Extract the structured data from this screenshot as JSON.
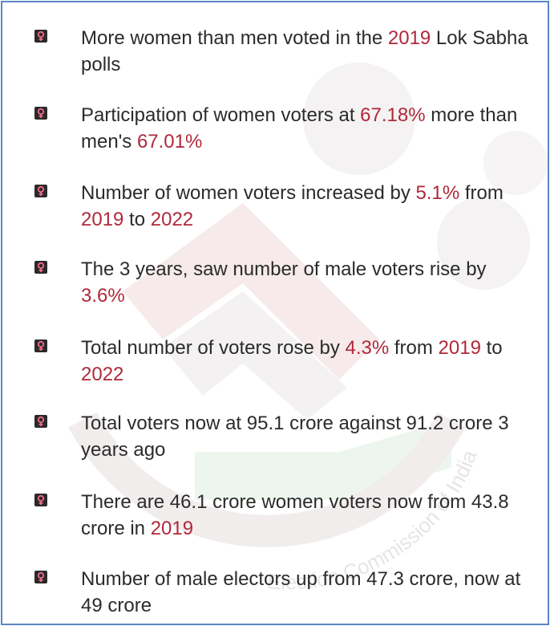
{
  "watermark": {
    "arc_text": "Election Commission of India"
  },
  "colors": {
    "text": "#2b2b2b",
    "highlight": "#b0283a",
    "bullet_bg": "#2a2a2a",
    "bullet_symbol": "#f06a8a",
    "border": "#5b86c6"
  },
  "bullet_icon": "female-symbol-icon",
  "facts": [
    {
      "segments": [
        {
          "t": "More women than men voted in the "
        },
        {
          "t": "2019",
          "hl": true
        },
        {
          "t": " Lok Sabha polls"
        }
      ]
    },
    {
      "segments": [
        {
          "t": "Participation of women voters at "
        },
        {
          "t": "67.18%",
          "hl": true
        },
        {
          "t": " more than men's "
        },
        {
          "t": "67.01%",
          "hl": true
        }
      ]
    },
    {
      "segments": [
        {
          "t": "Number of women voters increased by "
        },
        {
          "t": "5.1%",
          "hl": true
        },
        {
          "t": " from "
        },
        {
          "t": "2019",
          "hl": true
        },
        {
          "t": " to "
        },
        {
          "t": "2022",
          "hl": true
        }
      ]
    },
    {
      "segments": [
        {
          "t": "The 3 years, saw number of male voters rise by "
        },
        {
          "t": "3.6%",
          "hl": true
        }
      ]
    },
    {
      "segments": [
        {
          "t": "Total number of voters rose by "
        },
        {
          "t": "4.3%",
          "hl": true
        },
        {
          "t": " from "
        },
        {
          "t": "2019",
          "hl": true
        },
        {
          "t": " to "
        },
        {
          "t": "2022",
          "hl": true
        }
      ]
    },
    {
      "segments": [
        {
          "t": "Total voters now at 95.1 crore against 91.2 crore 3 years ago"
        }
      ]
    },
    {
      "segments": [
        {
          "t": "There are 46.1 crore women voters now from 43.8 crore in "
        },
        {
          "t": "2019",
          "hl": true
        }
      ]
    },
    {
      "segments": [
        {
          "t": "Number of male electors up from 47.3 crore, now at 49 crore"
        }
      ]
    }
  ]
}
